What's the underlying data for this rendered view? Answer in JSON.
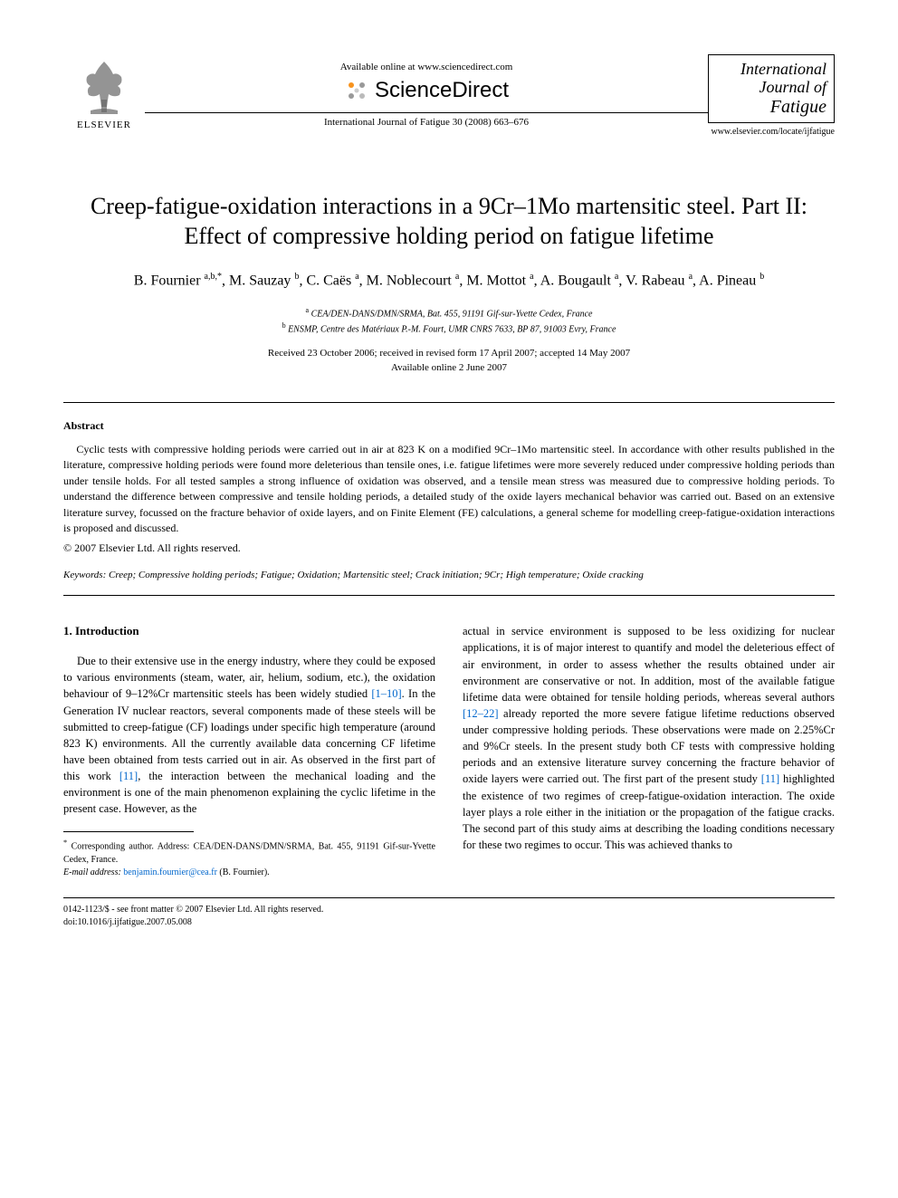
{
  "header": {
    "publisher_label": "ELSEVIER",
    "available_text": "Available online at www.sciencedirect.com",
    "sciencedirect_label": "ScienceDirect",
    "journal_reference": "International Journal of Fatigue 30 (2008) 663–676",
    "journal_title_l1": "International",
    "journal_title_l2": "Journal of",
    "journal_title_l3": "Fatigue",
    "journal_url": "www.elsevier.com/locate/ijfatigue"
  },
  "article": {
    "title": "Creep-fatigue-oxidation interactions in a 9Cr–1Mo martensitic steel. Part II: Effect of compressive holding period on fatigue lifetime",
    "authors_html": "B. Fournier <sup>a,b,*</sup>, M. Sauzay <sup>b</sup>, C. Caës <sup>a</sup>, M. Noblecourt <sup>a</sup>, M. Mottot <sup>a</sup>, A. Bougault <sup>a</sup>, V. Rabeau <sup>a</sup>, A. Pineau <sup>b</sup>",
    "affiliations": [
      {
        "sup": "a",
        "text": "CEA/DEN-DANS/DMN/SRMA, Bat. 455, 91191 Gif-sur-Yvette Cedex, France"
      },
      {
        "sup": "b",
        "text": "ENSMP, Centre des Matériaux P.-M. Fourt, UMR CNRS 7633, BP 87, 91003 Evry, France"
      }
    ],
    "dates_line1": "Received 23 October 2006; received in revised form 17 April 2007; accepted 14 May 2007",
    "dates_line2": "Available online 2 June 2007"
  },
  "abstract": {
    "heading": "Abstract",
    "body": "Cyclic tests with compressive holding periods were carried out in air at 823 K on a modified 9Cr–1Mo martensitic steel. In accordance with other results published in the literature, compressive holding periods were found more deleterious than tensile ones, i.e. fatigue lifetimes were more severely reduced under compressive holding periods than under tensile holds. For all tested samples a strong influence of oxidation was observed, and a tensile mean stress was measured due to compressive holding periods. To understand the difference between compressive and tensile holding periods, a detailed study of the oxide layers mechanical behavior was carried out. Based on an extensive literature survey, focussed on the fracture behavior of oxide layers, and on Finite Element (FE) calculations, a general scheme for modelling creep-fatigue-oxidation interactions is proposed and discussed.",
    "copyright": "© 2007 Elsevier Ltd. All rights reserved."
  },
  "keywords": {
    "label": "Keywords:",
    "text": "Creep; Compressive holding periods; Fatigue; Oxidation; Martensitic steel; Crack initiation; 9Cr; High temperature; Oxide cracking"
  },
  "body": {
    "section_heading": "1. Introduction",
    "col1_part1": "Due to their extensive use in the energy industry, where they could be exposed to various environments (steam, water, air, helium, sodium, etc.), the oxidation behaviour of 9–12%Cr martensitic steels has been widely studied ",
    "col1_ref1": "[1–10]",
    "col1_part2": ". In the Generation IV nuclear reactors, several components made of these steels will be submitted to creep-fatigue (CF) loadings under specific high temperature (around 823 K) environments. All the currently available data concerning CF lifetime have been obtained from tests carried out in air. As observed in the first part of this work ",
    "col1_ref2": "[11]",
    "col1_part3": ", the interaction between the mechanical loading and the environment is one of the main phenomenon explaining the cyclic lifetime in the present case. However, as the",
    "col2_part1": "actual in service environment is supposed to be less oxidizing for nuclear applications, it is of major interest to quantify and model the deleterious effect of air environment, in order to assess whether the results obtained under air environment are conservative or not. In addition, most of the available fatigue lifetime data were obtained for tensile holding periods, whereas several authors ",
    "col2_ref1": "[12–22]",
    "col2_part2": " already reported the more severe fatigue lifetime reductions observed under compressive holding periods. These observations were made on 2.25%Cr and 9%Cr steels. In the present study both CF tests with compressive holding periods and an extensive literature survey concerning the fracture behavior of oxide layers were carried out. The first part of the present study ",
    "col2_ref2": "[11]",
    "col2_part3": " highlighted the existence of two regimes of creep-fatigue-oxidation interaction. The oxide layer plays a role either in the initiation or the propagation of the fatigue cracks. The second part of this study aims at describing the loading conditions necessary for these two regimes to occur. This was achieved thanks to"
  },
  "footnote": {
    "corresponding": "Corresponding author. Address: CEA/DEN-DANS/DMN/SRMA, Bat. 455, 91191 Gif-sur-Yvette Cedex, France.",
    "email_label": "E-mail address:",
    "email": "benjamin.fournier@cea.fr",
    "email_after": "(B. Fournier)."
  },
  "footer": {
    "line1": "0142-1123/$ - see front matter © 2007 Elsevier Ltd. All rights reserved.",
    "line2": "doi:10.1016/j.ijfatigue.2007.05.008"
  },
  "colors": {
    "link": "#0066cc",
    "text": "#000000",
    "background": "#ffffff",
    "sd_orange": "#f7931e"
  }
}
